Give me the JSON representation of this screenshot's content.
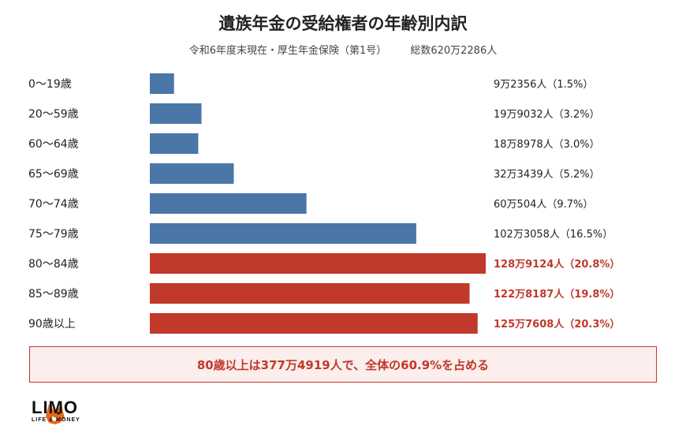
{
  "chart_data": {
    "type": "bar",
    "orientation": "horizontal",
    "title": "遺族年金の受給権者の年齢別内訳",
    "subtitle_left": "令和6年度末現在・厚生年金保険（第1号）",
    "subtitle_right": "総数620万2286人",
    "categories": [
      "0〜19歳",
      "20〜59歳",
      "60〜64歳",
      "65〜69歳",
      "70〜74歳",
      "75〜79歳",
      "80〜84歳",
      "85〜89歳",
      "90歳以上"
    ],
    "values": [
      1.5,
      3.2,
      3.0,
      5.2,
      9.7,
      16.5,
      20.8,
      19.8,
      20.3
    ],
    "value_unit": "%",
    "counts": [
      92356,
      199032,
      188978,
      323439,
      600504,
      1023058,
      1289124,
      1228187,
      1257608
    ],
    "data_labels": [
      "9万2356人（1.5%）",
      "19万9032人（3.2%）",
      "18万8978人（3.0%）",
      "32万3439人（5.2%）",
      "60万504人（9.7%）",
      "102万3058人（16.5%）",
      "128万9124人（20.8%）",
      "122万8187人（19.8%）",
      "125万7608人（20.3%）"
    ],
    "highlight": [
      false,
      false,
      false,
      false,
      false,
      false,
      true,
      true,
      true
    ],
    "colors": {
      "normal": "#4a76a8",
      "highlight": "#c0392b",
      "label_normal": "#222222",
      "label_highlight": "#c0392b"
    },
    "xlim": [
      0,
      20.8
    ],
    "grid": false,
    "legend": "none"
  },
  "callout": "80歳以上は377万4919人で、全体の60.9%を占める",
  "logo": {
    "main": "LIMO",
    "sub": "LIFE & MONEY",
    "icon": "fox-icon"
  }
}
